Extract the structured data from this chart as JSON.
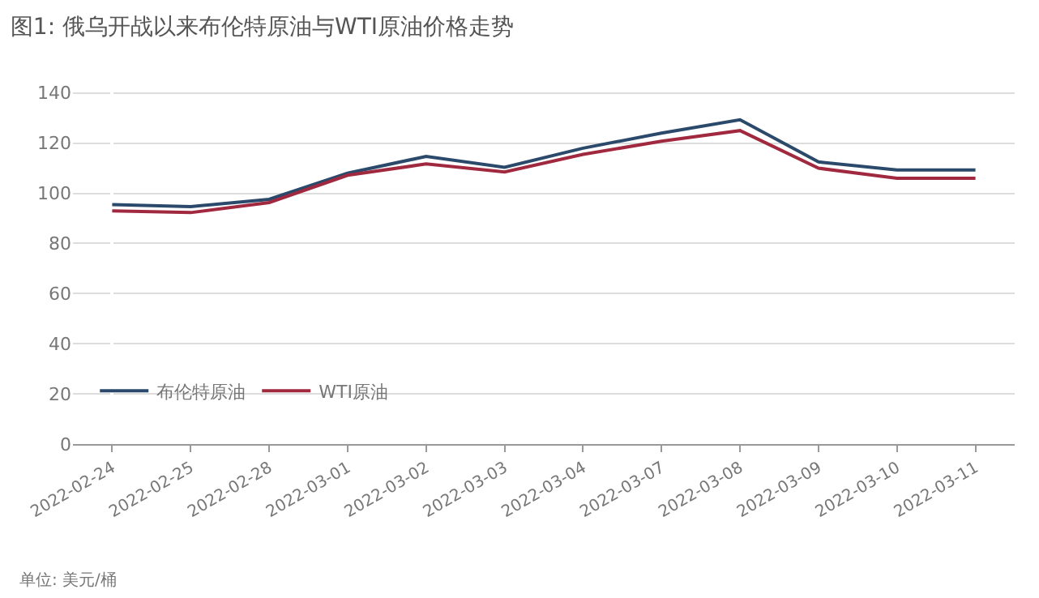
{
  "chart_data": {
    "type": "line",
    "title": "图1: 俄乌开战以来布伦特原油与WTI原油价格走势",
    "categories": [
      "2022-02-24",
      "2022-02-25",
      "2022-02-28",
      "2022-03-01",
      "2022-03-02",
      "2022-03-03",
      "2022-03-04",
      "2022-03-07",
      "2022-03-08",
      "2022-03-09",
      "2022-03-10",
      "2022-03-11"
    ],
    "series": [
      {
        "name": "布伦特原油",
        "color": "#2b4a6b",
        "values": [
          95.5,
          94.7,
          97.6,
          108,
          114.7,
          110.4,
          118,
          124,
          129.3,
          112.5,
          109.3,
          109.3
        ]
      },
      {
        "name": "WTI原油",
        "color": "#a0283f",
        "values": [
          93,
          92.3,
          96.3,
          107.2,
          111.7,
          108.5,
          115.5,
          120.8,
          125,
          110,
          106,
          106
        ]
      }
    ],
    "ylim": [
      0,
      148
    ],
    "yticks": [
      0,
      20,
      40,
      60,
      80,
      100,
      120,
      140
    ],
    "grid": "y",
    "legend": "bottom left",
    "marker": "none",
    "line_style": "solid",
    "annotations": [
      "单位: 美元/桶"
    ]
  }
}
